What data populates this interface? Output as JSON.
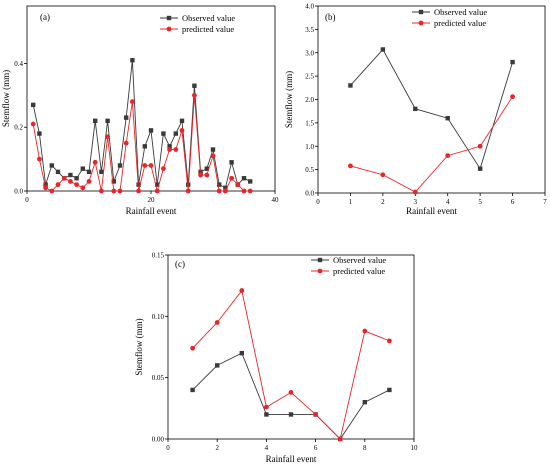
{
  "colors": {
    "observed": "#3a3a3a",
    "predicted": "#e8262a"
  },
  "chart_data": [
    {
      "type": "line",
      "panel_label": "(a)",
      "xlabel": "Rainfall event",
      "ylabel": "Stemflow (mm)",
      "xlim": [
        0,
        40
      ],
      "ylim": [
        0,
        0.58
      ],
      "xticks": [
        0,
        20,
        40
      ],
      "yticks": [
        0.0,
        0.2,
        0.4
      ],
      "ytick_labels": [
        "0.0",
        "0.2",
        "0.4"
      ],
      "legend_position": "top-right",
      "series": [
        {
          "name": "Observed value",
          "x": [
            1,
            2,
            3,
            4,
            5,
            6,
            7,
            8,
            9,
            10,
            11,
            12,
            13,
            14,
            15,
            16,
            17,
            18,
            19,
            20,
            21,
            22,
            23,
            24,
            25,
            26,
            27,
            28,
            29,
            30,
            31,
            32,
            33,
            34,
            35,
            36
          ],
          "y": [
            0.27,
            0.18,
            0.02,
            0.08,
            0.06,
            0.04,
            0.05,
            0.04,
            0.07,
            0.06,
            0.22,
            0.06,
            0.22,
            0.03,
            0.08,
            0.23,
            0.41,
            0.02,
            0.14,
            0.19,
            0.02,
            0.18,
            0.14,
            0.18,
            0.22,
            0.02,
            0.33,
            0.06,
            0.07,
            0.13,
            0.02,
            0.01,
            0.09,
            0.02,
            0.04,
            0.03
          ]
        },
        {
          "name": "predicted value",
          "x": [
            1,
            2,
            3,
            4,
            5,
            6,
            7,
            8,
            9,
            10,
            11,
            12,
            13,
            14,
            15,
            16,
            17,
            18,
            19,
            20,
            21,
            22,
            23,
            24,
            25,
            26,
            27,
            28,
            29,
            30,
            31,
            32,
            33,
            34,
            35,
            36
          ],
          "y": [
            0.21,
            0.1,
            0.01,
            0.0,
            0.02,
            0.04,
            0.03,
            0.02,
            0.01,
            0.03,
            0.09,
            0.0,
            0.17,
            0.0,
            0.0,
            0.15,
            0.28,
            0.0,
            0.08,
            0.08,
            0.0,
            0.07,
            0.13,
            0.13,
            0.19,
            0.0,
            0.3,
            0.05,
            0.05,
            0.11,
            0.0,
            0.0,
            0.04,
            0.02,
            0.0,
            0.0
          ]
        }
      ]
    },
    {
      "type": "line",
      "panel_label": "(b)",
      "xlabel": "Rainfall event",
      "ylabel": "Stemflow (mm)",
      "xlim": [
        0,
        7
      ],
      "ylim": [
        0,
        4.0
      ],
      "xticks": [
        0,
        1,
        2,
        3,
        4,
        5,
        6,
        7
      ],
      "yticks": [
        0.0,
        0.5,
        1.0,
        1.5,
        2.0,
        2.5,
        3.0,
        3.5,
        4.0
      ],
      "ytick_labels": [
        "0.0",
        "0.5",
        "1.0",
        "1.5",
        "2.0",
        "2.5",
        "3.0",
        "3.5",
        "4.0"
      ],
      "legend_position": "top-right",
      "series": [
        {
          "name": "Observed value",
          "x": [
            1,
            2,
            3,
            4,
            5,
            6
          ],
          "y": [
            2.3,
            3.07,
            1.8,
            1.6,
            0.52,
            2.8
          ]
        },
        {
          "name": "predicted value",
          "x": [
            1,
            2,
            3,
            4,
            5,
            6
          ],
          "y": [
            0.58,
            0.39,
            0.02,
            0.8,
            1.0,
            2.06
          ]
        }
      ]
    },
    {
      "type": "line",
      "panel_label": "(c)",
      "xlabel": "Rainfall event",
      "ylabel": "Stemflow (mm)",
      "xlim": [
        0,
        10
      ],
      "ylim": [
        0,
        0.15
      ],
      "xticks": [
        0,
        2,
        4,
        6,
        8,
        10
      ],
      "yticks": [
        0.0,
        0.05,
        0.1,
        0.15
      ],
      "ytick_labels": [
        "0.00",
        "0.05",
        "0.10",
        "0.15"
      ],
      "legend_position": "top-right",
      "series": [
        {
          "name": "Observed value",
          "x": [
            1,
            2,
            3,
            4,
            5,
            6,
            7,
            8,
            9
          ],
          "y": [
            0.04,
            0.06,
            0.07,
            0.02,
            0.02,
            0.02,
            0.0,
            0.03,
            0.04
          ]
        },
        {
          "name": "predicted value",
          "x": [
            1,
            2,
            3,
            4,
            5,
            6,
            7,
            8,
            9
          ],
          "y": [
            0.074,
            0.095,
            0.121,
            0.026,
            0.038,
            0.02,
            0.0,
            0.088,
            0.08
          ]
        }
      ]
    }
  ]
}
